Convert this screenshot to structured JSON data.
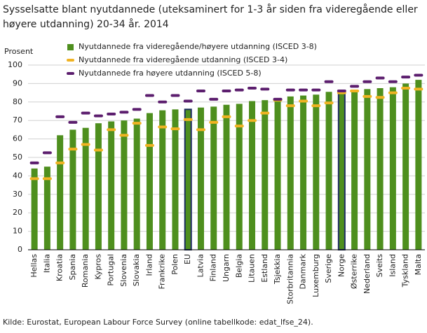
{
  "chart_data": {
    "type": "bar",
    "title": [
      "Sysselsatte blant nyutdannede (uteksaminert for 1-3 år siden fra videregående eller",
      "høyere utdanning) 20-34 år. 2014"
    ],
    "y_label": "Prosent",
    "source": "Kilde: Eurostat, European Labour Force Survey (online tabellkode: edat_lfse_24).",
    "categories": [
      "Hellas",
      "Italia",
      "Kroatia",
      "Spania",
      "Romania",
      "Kypros",
      "Portugal",
      "Slovenia",
      "Slovakia",
      "Irland",
      "Frankrike",
      "Polen",
      "EU",
      "Latvia",
      "Finland",
      "Ungarn",
      "Belgia",
      "Litauen",
      "Estland",
      "Tsjekkia",
      "Storbritannia",
      "Danmark",
      "Luxemburg",
      "Sverige",
      "Norge",
      "Østerrike",
      "Nederland",
      "Sveits",
      "Island",
      "Tyskland",
      "Malta"
    ],
    "series": [
      {
        "name": "Nyutdannede fra videregående/høyere utdanning (ISCED 3-8)",
        "color": "#4e8f1e",
        "kind": "bar",
        "values": [
          44,
          45,
          62,
          65,
          66,
          68.5,
          69.5,
          70,
          71,
          74,
          75.5,
          76,
          76,
          77,
          77.5,
          78.5,
          79,
          80.5,
          81,
          80.5,
          83,
          83.5,
          84,
          85.5,
          85.5,
          86,
          87,
          87.5,
          88,
          90,
          92
        ]
      },
      {
        "name": "Nyutdannede fra videregående utdanning (ISCED 3-4)",
        "color": "#f0b323",
        "kind": "dash",
        "values": [
          38.5,
          38.5,
          47,
          54.5,
          57,
          54,
          65,
          62,
          68.5,
          56.5,
          66.5,
          65.5,
          70.5,
          65,
          69,
          72,
          67,
          70,
          74,
          81,
          78,
          80.5,
          78,
          79.5,
          85,
          86,
          83,
          82.5,
          85,
          87.5,
          87
        ]
      },
      {
        "name": "Nyutdannede fra høyere utdanning (ISCED 5-8)",
        "color": "#5c1e6e",
        "kind": "dash",
        "values": [
          47,
          52.5,
          72,
          69,
          74,
          72.5,
          73.5,
          74.5,
          76,
          83.5,
          80,
          83.5,
          80.5,
          86,
          81.5,
          86,
          86.5,
          87.5,
          87,
          81.5,
          86.5,
          86.5,
          86.5,
          91,
          86,
          88.5,
          91,
          93,
          91,
          93.5,
          94.5
        ]
      }
    ],
    "highlight": [
      "EU",
      "Norge"
    ],
    "highlight_color": "#1b2b5e",
    "ylim": [
      0,
      100
    ],
    "yticks": [
      0,
      10,
      20,
      30,
      40,
      50,
      60,
      70,
      80,
      90,
      100
    ],
    "grid": true
  }
}
